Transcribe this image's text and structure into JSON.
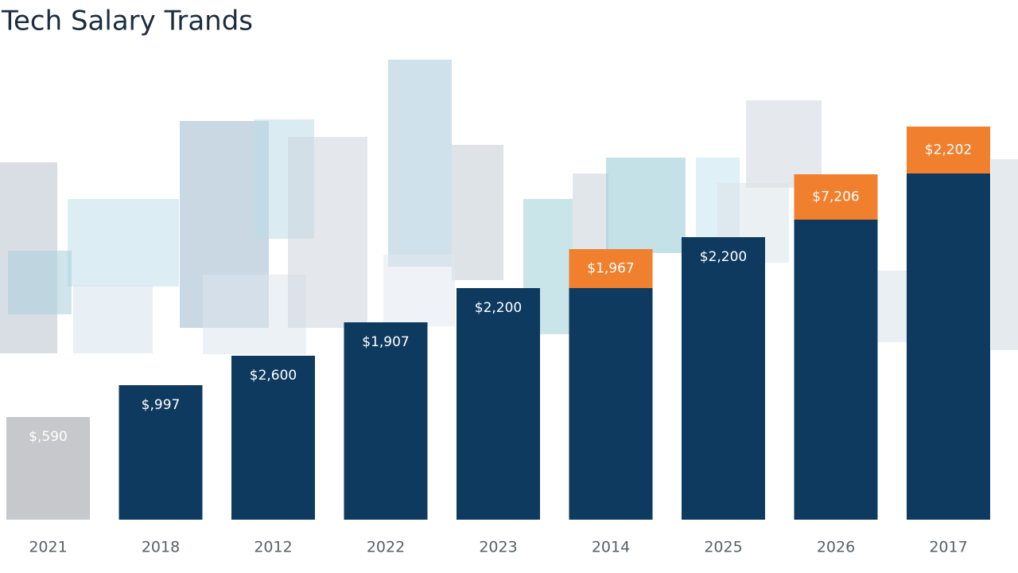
{
  "chart_data": {
    "type": "bar",
    "title": "Tech Salary Trands",
    "categories": [
      "2021",
      "2018",
      "2012",
      "2022",
      "2023",
      "2014",
      "2025",
      "2026",
      "2017"
    ],
    "values": [
      129,
      169,
      206,
      248,
      291,
      291,
      355,
      377,
      435
    ],
    "caps": [
      null,
      null,
      null,
      null,
      null,
      49,
      null,
      57,
      59
    ],
    "bar_labels": [
      "$,590",
      "$,997",
      "$2,600",
      "$1,907",
      "$2,200",
      "$1,967",
      "$2,200",
      "$7,206",
      "$2,202"
    ],
    "colors": [
      "#c6c8cb",
      "#0f3a5f",
      "#0f3a5f",
      "#0f3a5f",
      "#0f3a5f",
      "#0f3a5f",
      "#0f3a5f",
      "#0f3a5f",
      "#0f3a5f"
    ],
    "cap_color": "#f07f2e",
    "ylim": [
      0,
      500
    ]
  }
}
